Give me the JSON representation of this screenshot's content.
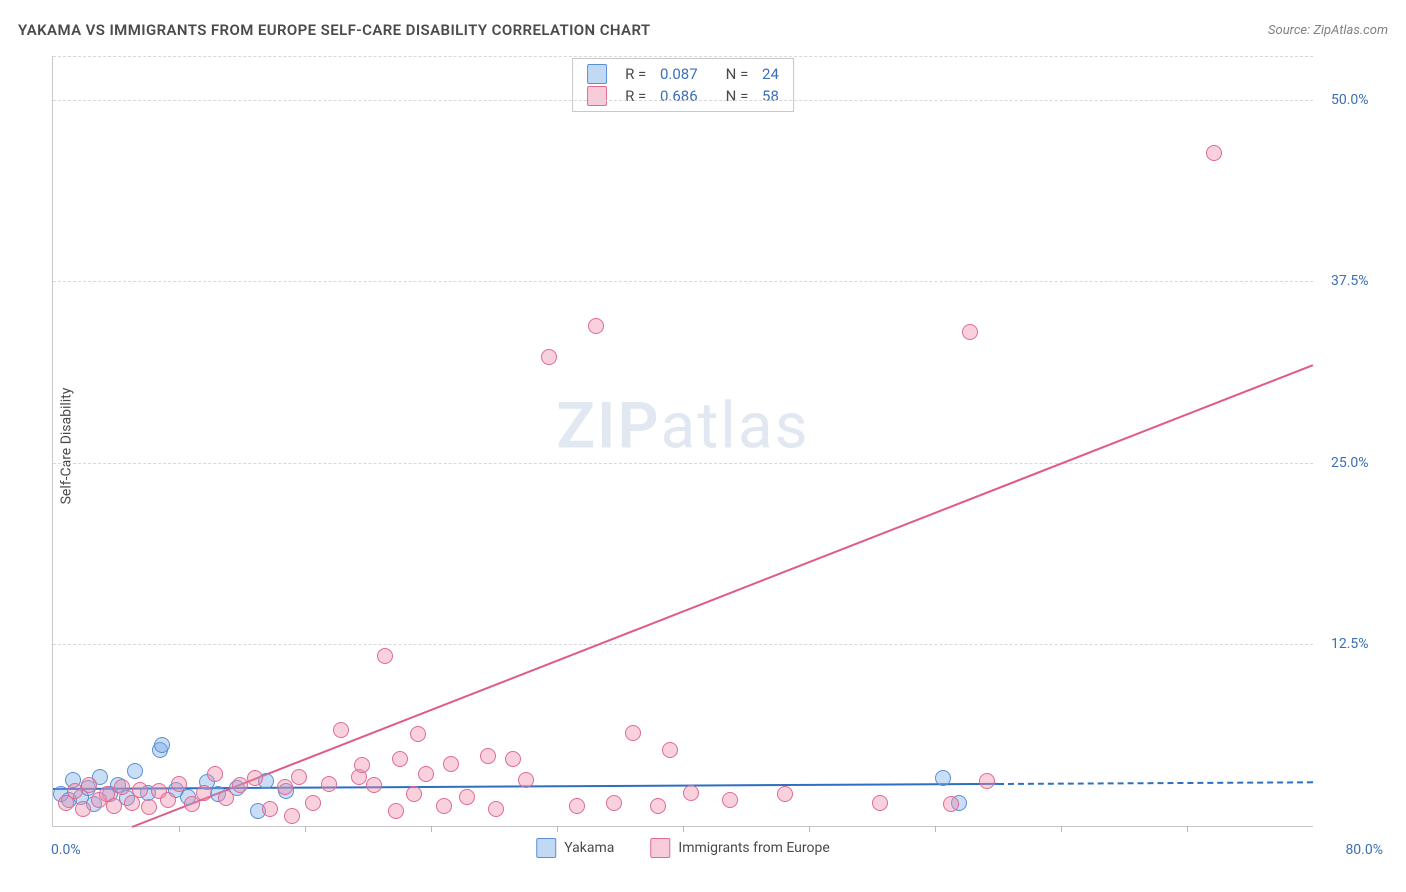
{
  "chart": {
    "type": "scatter",
    "title": "YAKAMA VS IMMIGRANTS FROM EUROPE SELF-CARE DISABILITY CORRELATION CHART",
    "source_label": "Source: ",
    "source_name": "ZipAtlas.com",
    "ylabel": "Self-Care Disability",
    "watermark_zip": "ZIP",
    "watermark_atlas": "atlas",
    "background_color": "#ffffff",
    "axis_color": "#c8c8c8",
    "grid_color": "#d8d8d8",
    "tick_label_color": "#3b6fb6",
    "text_color": "#4a4a4a",
    "xlim": [
      0,
      80
    ],
    "ylim": [
      0,
      53
    ],
    "x_corner_min": "0.0%",
    "x_corner_max": "80.0%",
    "y_ticks": [
      {
        "v": 12.5,
        "label": "12.5%"
      },
      {
        "v": 25.0,
        "label": "25.0%"
      },
      {
        "v": 37.5,
        "label": "37.5%"
      },
      {
        "v": 50.0,
        "label": "50.0%"
      }
    ],
    "x_ticks": [
      8,
      16,
      24,
      32,
      40,
      48,
      56,
      64,
      72
    ],
    "top_legend": [
      {
        "swatch_fill": "rgba(120,170,230,0.45)",
        "swatch_border": "#5a8fd6",
        "r": "0.087",
        "n": "24"
      },
      {
        "swatch_fill": "rgba(240,140,170,0.45)",
        "swatch_border": "#e06a94",
        "r": "0.686",
        "n": "58"
      }
    ],
    "bottom_legend": [
      {
        "swatch_fill": "rgba(120,170,230,0.45)",
        "swatch_border": "#5a8fd6",
        "label": "Yakama"
      },
      {
        "swatch_fill": "rgba(240,140,170,0.45)",
        "swatch_border": "#e06a94",
        "label": "Immigrants from Europe"
      }
    ],
    "series": [
      {
        "name": "Yakama",
        "marker_fill": "rgba(120,170,230,0.40)",
        "marker_border": "#5a8fd6",
        "marker_size": 14,
        "trend": {
          "color": "#2f6fc0",
          "width": 2,
          "x1": 0,
          "y1": 2.6,
          "x2": 60,
          "y2": 2.95,
          "dash_extend_to": 80
        },
        "points": [
          [
            0.5,
            2.2
          ],
          [
            1.0,
            1.8
          ],
          [
            1.3,
            3.2
          ],
          [
            1.8,
            2.0
          ],
          [
            2.2,
            2.6
          ],
          [
            2.6,
            1.5
          ],
          [
            3.0,
            3.4
          ],
          [
            3.6,
            2.2
          ],
          [
            4.1,
            2.8
          ],
          [
            4.7,
            1.9
          ],
          [
            5.2,
            3.8
          ],
          [
            6.0,
            2.3
          ],
          [
            6.8,
            5.2
          ],
          [
            6.9,
            5.6
          ],
          [
            7.8,
            2.5
          ],
          [
            8.6,
            2.0
          ],
          [
            9.8,
            3.0
          ],
          [
            10.5,
            2.2
          ],
          [
            11.7,
            2.6
          ],
          [
            13.0,
            1.0
          ],
          [
            13.5,
            3.1
          ],
          [
            14.8,
            2.4
          ],
          [
            57.5,
            1.6
          ],
          [
            56.5,
            3.3
          ]
        ]
      },
      {
        "name": "Immigrants from Europe",
        "marker_fill": "rgba(240,140,170,0.40)",
        "marker_border": "#e06a94",
        "marker_size": 14,
        "trend": {
          "color": "#e05a86",
          "width": 2,
          "x1": 5,
          "y1": 0,
          "x2": 80,
          "y2": 31.8
        },
        "points": [
          [
            0.8,
            1.6
          ],
          [
            1.4,
            2.4
          ],
          [
            1.9,
            1.2
          ],
          [
            2.3,
            2.8
          ],
          [
            2.9,
            1.8
          ],
          [
            3.4,
            2.2
          ],
          [
            3.9,
            1.4
          ],
          [
            4.4,
            2.7
          ],
          [
            5.0,
            1.6
          ],
          [
            5.5,
            2.5
          ],
          [
            6.1,
            1.3
          ],
          [
            6.7,
            2.4
          ],
          [
            7.3,
            1.8
          ],
          [
            8.0,
            2.9
          ],
          [
            8.8,
            1.5
          ],
          [
            9.6,
            2.3
          ],
          [
            10.3,
            3.6
          ],
          [
            11.0,
            1.9
          ],
          [
            11.9,
            2.8
          ],
          [
            12.8,
            3.3
          ],
          [
            13.8,
            1.2
          ],
          [
            14.7,
            2.7
          ],
          [
            15.6,
            3.4
          ],
          [
            16.5,
            1.6
          ],
          [
            17.5,
            2.9
          ],
          [
            18.3,
            6.6
          ],
          [
            15.2,
            0.7
          ],
          [
            19.4,
            3.4
          ],
          [
            19.6,
            4.2
          ],
          [
            20.4,
            2.8
          ],
          [
            21.1,
            11.7
          ],
          [
            22.0,
            4.6
          ],
          [
            22.9,
            2.2
          ],
          [
            23.7,
            3.6
          ],
          [
            24.8,
            1.4
          ],
          [
            25.3,
            4.3
          ],
          [
            26.3,
            2.0
          ],
          [
            27.6,
            4.8
          ],
          [
            28.1,
            1.2
          ],
          [
            21.8,
            1.0
          ],
          [
            23.2,
            6.3
          ],
          [
            29.2,
            4.6
          ],
          [
            30.0,
            3.2
          ],
          [
            31.5,
            32.3
          ],
          [
            33.3,
            1.4
          ],
          [
            34.5,
            34.4
          ],
          [
            35.6,
            1.6
          ],
          [
            36.8,
            6.4
          ],
          [
            38.4,
            1.4
          ],
          [
            39.2,
            5.2
          ],
          [
            40.5,
            2.3
          ],
          [
            43.0,
            1.8
          ],
          [
            46.5,
            2.2
          ],
          [
            52.5,
            1.6
          ],
          [
            58.2,
            34.0
          ],
          [
            59.3,
            3.1
          ],
          [
            73.7,
            46.3
          ],
          [
            57.0,
            1.5
          ]
        ]
      }
    ]
  }
}
